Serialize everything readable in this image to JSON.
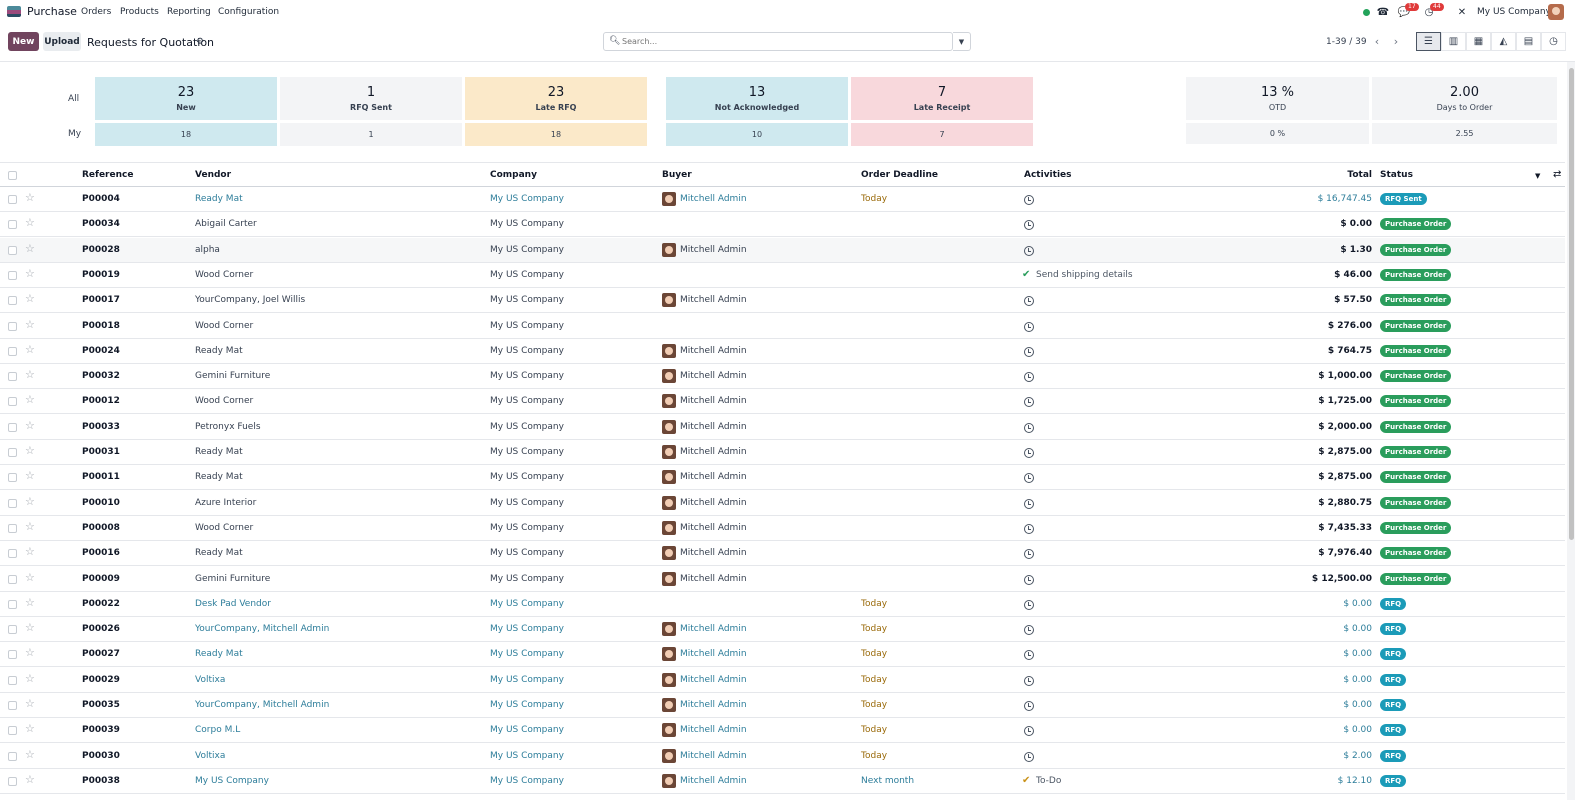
{
  "nav": {
    "app_name": "Purchase",
    "menu": [
      "Orders",
      "Products",
      "Reporting",
      "Configuration"
    ],
    "messages_count": "17",
    "activities_count": "44",
    "company": "My US Company"
  },
  "control": {
    "new_label": "New",
    "upload_label": "Upload",
    "title": "Requests for Quotation",
    "search_placeholder": "Search...",
    "pager": "1-39 / 39"
  },
  "dashboard": {
    "all_label": "All",
    "my_label": "My",
    "tiles": [
      {
        "label": "New",
        "all": "23",
        "my": "18",
        "color": "#cfe9ef"
      },
      {
        "label": "RFQ Sent",
        "all": "1",
        "my": "1",
        "color": "#f3f4f6"
      },
      {
        "label": "Late RFQ",
        "all": "23",
        "my": "18",
        "color": "#fbe9c9"
      },
      {
        "label": "Not Acknowledged",
        "all": "13",
        "my": "10",
        "color": "#cfe9ef"
      },
      {
        "label": "Late Receipt",
        "all": "7",
        "my": "7",
        "color": "#f8d8dc"
      }
    ],
    "kpis": [
      {
        "label": "OTD",
        "all": "13 %",
        "my": "0 %"
      },
      {
        "label": "Days to Order",
        "all": "2.00",
        "my": "2.55"
      }
    ]
  },
  "table": {
    "headers": {
      "reference": "Reference",
      "vendor": "Vendor",
      "company": "Company",
      "buyer": "Buyer",
      "deadline": "Order Deadline",
      "activities": "Activities",
      "total": "Total",
      "status": "Status"
    },
    "rows": [
      {
        "ref": "P00004",
        "vendor": "Ready Mat",
        "company": "My US Company",
        "buyer": "Mitchell Admin",
        "deadline": "Today",
        "activity": "",
        "total": "$ 16,747.45",
        "status": "RFQ Sent",
        "style": "link"
      },
      {
        "ref": "P00034",
        "vendor": "Abigail Carter",
        "company": "My US Company",
        "buyer": "",
        "deadline": "",
        "activity": "",
        "total": "$ 0.00",
        "status": "Purchase Order",
        "style": "normal"
      },
      {
        "ref": "P00028",
        "vendor": "alpha",
        "company": "My US Company",
        "buyer": "Mitchell Admin",
        "deadline": "",
        "activity": "",
        "total": "$ 1.30",
        "status": "Purchase Order",
        "style": "normal"
      },
      {
        "ref": "P00019",
        "vendor": "Wood Corner",
        "company": "My US Company",
        "buyer": "",
        "deadline": "",
        "activity": "Send shipping details",
        "total": "$ 46.00",
        "status": "Purchase Order",
        "style": "normal"
      },
      {
        "ref": "P00017",
        "vendor": "YourCompany, Joel Willis",
        "company": "My US Company",
        "buyer": "Mitchell Admin",
        "deadline": "",
        "activity": "",
        "total": "$ 57.50",
        "status": "Purchase Order",
        "style": "normal"
      },
      {
        "ref": "P00018",
        "vendor": "Wood Corner",
        "company": "My US Company",
        "buyer": "",
        "deadline": "",
        "activity": "",
        "total": "$ 276.00",
        "status": "Purchase Order",
        "style": "normal"
      },
      {
        "ref": "P00024",
        "vendor": "Ready Mat",
        "company": "My US Company",
        "buyer": "Mitchell Admin",
        "deadline": "",
        "activity": "",
        "total": "$ 764.75",
        "status": "Purchase Order",
        "style": "normal"
      },
      {
        "ref": "P00032",
        "vendor": "Gemini Furniture",
        "company": "My US Company",
        "buyer": "Mitchell Admin",
        "deadline": "",
        "activity": "",
        "total": "$ 1,000.00",
        "status": "Purchase Order",
        "style": "normal"
      },
      {
        "ref": "P00012",
        "vendor": "Wood Corner",
        "company": "My US Company",
        "buyer": "Mitchell Admin",
        "deadline": "",
        "activity": "",
        "total": "$ 1,725.00",
        "status": "Purchase Order",
        "style": "normal"
      },
      {
        "ref": "P00033",
        "vendor": "Petronyx Fuels",
        "company": "My US Company",
        "buyer": "Mitchell Admin",
        "deadline": "",
        "activity": "",
        "total": "$ 2,000.00",
        "status": "Purchase Order",
        "style": "normal"
      },
      {
        "ref": "P00031",
        "vendor": "Ready Mat",
        "company": "My US Company",
        "buyer": "Mitchell Admin",
        "deadline": "",
        "activity": "",
        "total": "$ 2,875.00",
        "status": "Purchase Order",
        "style": "normal"
      },
      {
        "ref": "P00011",
        "vendor": "Ready Mat",
        "company": "My US Company",
        "buyer": "Mitchell Admin",
        "deadline": "",
        "activity": "",
        "total": "$ 2,875.00",
        "status": "Purchase Order",
        "style": "normal"
      },
      {
        "ref": "P00010",
        "vendor": "Azure Interior",
        "company": "My US Company",
        "buyer": "Mitchell Admin",
        "deadline": "",
        "activity": "",
        "total": "$ 2,880.75",
        "status": "Purchase Order",
        "style": "normal"
      },
      {
        "ref": "P00008",
        "vendor": "Wood Corner",
        "company": "My US Company",
        "buyer": "Mitchell Admin",
        "deadline": "",
        "activity": "",
        "total": "$ 7,435.33",
        "status": "Purchase Order",
        "style": "normal"
      },
      {
        "ref": "P00016",
        "vendor": "Ready Mat",
        "company": "My US Company",
        "buyer": "Mitchell Admin",
        "deadline": "",
        "activity": "",
        "total": "$ 7,976.40",
        "status": "Purchase Order",
        "style": "normal"
      },
      {
        "ref": "P00009",
        "vendor": "Gemini Furniture",
        "company": "My US Company",
        "buyer": "Mitchell Admin",
        "deadline": "",
        "activity": "",
        "total": "$ 12,500.00",
        "status": "Purchase Order",
        "style": "normal"
      },
      {
        "ref": "P00022",
        "vendor": "Desk Pad Vendor",
        "company": "My US Company",
        "buyer": "",
        "deadline": "Today",
        "activity": "",
        "total": "$ 0.00",
        "status": "RFQ",
        "style": "link"
      },
      {
        "ref": "P00026",
        "vendor": "YourCompany, Mitchell Admin",
        "company": "My US Company",
        "buyer": "Mitchell Admin",
        "deadline": "Today",
        "activity": "",
        "total": "$ 0.00",
        "status": "RFQ",
        "style": "link"
      },
      {
        "ref": "P00027",
        "vendor": "Ready Mat",
        "company": "My US Company",
        "buyer": "Mitchell Admin",
        "deadline": "Today",
        "activity": "",
        "total": "$ 0.00",
        "status": "RFQ",
        "style": "link"
      },
      {
        "ref": "P00029",
        "vendor": "Voltixa",
        "company": "My US Company",
        "buyer": "Mitchell Admin",
        "deadline": "Today",
        "activity": "",
        "total": "$ 0.00",
        "status": "RFQ",
        "style": "link"
      },
      {
        "ref": "P00035",
        "vendor": "YourCompany, Mitchell Admin",
        "company": "My US Company",
        "buyer": "Mitchell Admin",
        "deadline": "Today",
        "activity": "",
        "total": "$ 0.00",
        "status": "RFQ",
        "style": "link"
      },
      {
        "ref": "P00039",
        "vendor": "Corpo M.L",
        "company": "My US Company",
        "buyer": "Mitchell Admin",
        "deadline": "Today",
        "activity": "",
        "total": "$ 0.00",
        "status": "RFQ",
        "style": "link"
      },
      {
        "ref": "P00030",
        "vendor": "Voltixa",
        "company": "My US Company",
        "buyer": "Mitchell Admin",
        "deadline": "Today",
        "activity": "",
        "total": "$ 2.00",
        "status": "RFQ",
        "style": "link"
      },
      {
        "ref": "P00038",
        "vendor": "My US Company",
        "company": "My US Company",
        "buyer": "Mitchell Admin",
        "deadline": "Next month",
        "activity": "To-Do",
        "total": "$ 12.10",
        "status": "RFQ",
        "style": "link"
      }
    ]
  },
  "colors": {
    "brand": "#71445e",
    "link": "#2d7d9a",
    "status_po": "#2a9d5c",
    "status_rfq": "#1b9bb8",
    "warning": "#9a6a0a"
  }
}
